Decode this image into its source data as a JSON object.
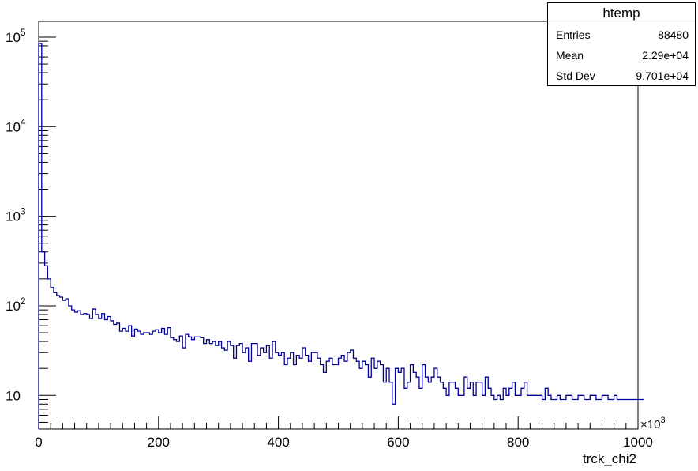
{
  "chart_data": {
    "type": "histogram",
    "title": "",
    "xlabel": "trck_chi2",
    "ylabel": "",
    "x_multiplier_label": "×10",
    "x_multiplier_exp": "3",
    "xlim": [
      0,
      1000
    ],
    "ylim": [
      4.2,
      150000
    ],
    "yscale": "log",
    "grid": false,
    "line_color": "#000099",
    "x_ticks": [
      0,
      200,
      400,
      600,
      800,
      1000
    ],
    "y_ticks": [
      {
        "value": 10,
        "base": "10",
        "exp": ""
      },
      {
        "value": 100,
        "base": "10",
        "exp": "2"
      },
      {
        "value": 1000,
        "base": "10",
        "exp": "3"
      },
      {
        "value": 10000,
        "base": "10",
        "exp": "4"
      },
      {
        "value": 100000,
        "base": "10",
        "exp": "5"
      }
    ],
    "bin_width": 10,
    "bin_contents": [
      85000,
      400,
      280,
      200,
      160,
      140,
      130,
      125,
      115,
      120,
      100,
      90,
      85,
      88,
      80,
      82,
      80,
      72,
      92,
      80,
      72,
      82,
      70,
      76,
      68,
      62,
      64,
      52,
      56,
      52,
      60,
      46,
      55,
      52,
      48,
      50,
      50,
      48,
      52,
      54,
      50,
      56,
      48,
      57,
      44,
      42,
      40,
      46,
      34,
      48,
      45,
      42,
      45,
      45,
      44,
      38,
      42,
      38,
      40,
      36,
      40,
      34,
      32,
      40,
      36,
      26,
      36,
      38,
      30,
      34,
      24,
      38,
      38,
      28,
      34,
      30,
      36,
      26,
      40,
      30,
      28,
      30,
      22,
      26,
      30,
      22,
      28,
      26,
      34,
      28,
      24,
      30,
      30,
      26,
      22,
      18,
      24,
      26,
      22,
      22,
      26,
      28,
      24,
      30,
      32,
      26,
      24,
      20,
      24,
      22,
      16,
      26,
      20,
      24,
      22,
      14,
      20,
      14,
      8,
      20,
      18,
      20,
      12,
      14,
      22,
      18,
      16,
      12,
      22,
      16,
      14,
      16,
      20,
      16,
      14,
      12,
      10,
      14,
      14,
      12,
      10,
      10,
      16,
      12,
      14,
      10,
      14,
      14,
      10,
      16,
      12,
      10,
      9,
      10,
      9,
      12,
      10,
      12,
      14,
      10,
      10,
      12,
      14,
      10,
      10,
      10,
      10,
      10,
      9,
      12,
      10,
      9,
      9,
      10,
      9,
      9,
      10,
      10,
      9,
      9,
      10,
      10,
      9,
      9,
      10,
      10,
      9,
      9,
      10,
      10,
      9,
      9,
      10,
      9,
      9,
      9,
      9,
      9,
      9,
      9,
      9,
      9
    ]
  },
  "stats": {
    "title": "htemp",
    "rows": [
      {
        "label": "Entries",
        "value": "88480"
      },
      {
        "label": "Mean",
        "value": "2.29e+04"
      },
      {
        "label": "Std Dev",
        "value": "9.701e+04"
      }
    ]
  }
}
